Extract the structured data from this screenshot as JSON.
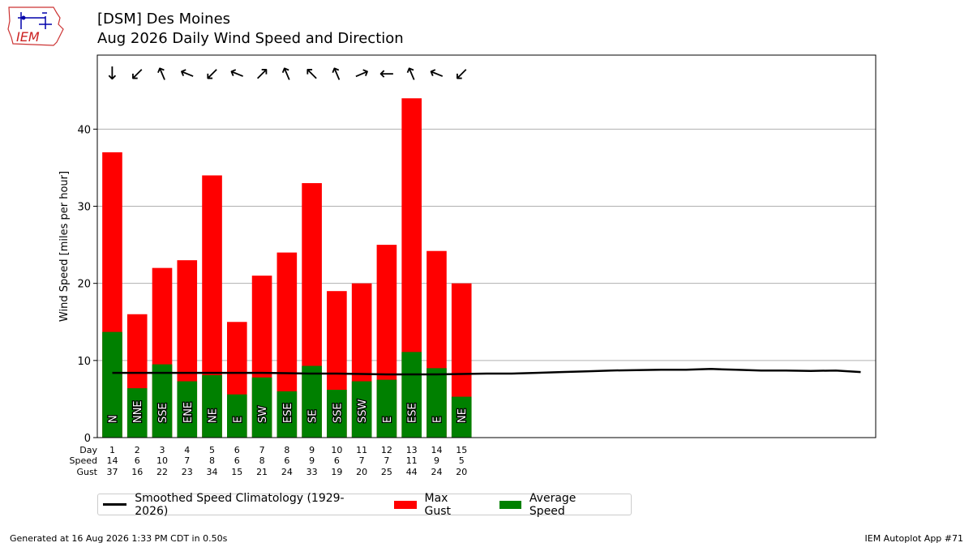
{
  "header": {
    "line1": "[DSM] Des Moines",
    "line2": "Aug 2026 Daily Wind Speed and Direction"
  },
  "logo": {
    "text": "IEM"
  },
  "footer": {
    "generated": "Generated at 16 Aug 2026 1:33 PM CDT in 0.50s",
    "app": "IEM Autoplot App #71"
  },
  "chart_data": {
    "type": "bar",
    "ylabel": "Wind Speed [miles per hour]",
    "ylim": [
      0,
      49.6
    ],
    "yticks": [
      0,
      10,
      20,
      30,
      40
    ],
    "x_days_total": 31,
    "grid": "horizontal",
    "row_labels": {
      "day": "Day",
      "speed": "Speed",
      "gust": "Gust"
    },
    "days": [
      1,
      2,
      3,
      4,
      5,
      6,
      7,
      8,
      9,
      10,
      11,
      12,
      13,
      14,
      15
    ],
    "directions": [
      "N",
      "NNE",
      "SSE",
      "ENE",
      "NE",
      "E",
      "SW",
      "ESE",
      "SE",
      "SSE",
      "SSW",
      "E",
      "ESE",
      "E",
      "NE"
    ],
    "arrow_glyphs": [
      "↓",
      "↙",
      "↖",
      "←",
      "↙",
      "←",
      "↗",
      "↖",
      "↖",
      "↖",
      "↗",
      "←",
      "↖",
      "←",
      "↙"
    ],
    "arrow_rotations": [
      0,
      0,
      22,
      22,
      0,
      22,
      0,
      22,
      0,
      22,
      22,
      0,
      22,
      22,
      0
    ],
    "series": [
      {
        "name": "Max Gust",
        "color": "#ff0000",
        "values": [
          37,
          16,
          22,
          23,
          34,
          15,
          21,
          24,
          33,
          19,
          20,
          25,
          44,
          24.2,
          20
        ]
      },
      {
        "name": "Average Speed",
        "color": "#008000",
        "values": [
          13.7,
          6.4,
          9.5,
          7.3,
          8.1,
          5.6,
          7.8,
          6.0,
          9.3,
          6.2,
          7.3,
          7.5,
          11.1,
          9.0,
          5.3
        ]
      },
      {
        "name": "Smoothed Speed Climatology (1929-2026)",
        "color": "#000000",
        "x": [
          1,
          2,
          3,
          4,
          5,
          6,
          7,
          8,
          9,
          10,
          11,
          12,
          13,
          14,
          15,
          16,
          17,
          18,
          19,
          20,
          21,
          22,
          23,
          24,
          25,
          26,
          27,
          28,
          29,
          30,
          31
        ],
        "values": [
          8.4,
          8.4,
          8.4,
          8.4,
          8.4,
          8.4,
          8.4,
          8.35,
          8.3,
          8.3,
          8.25,
          8.2,
          8.2,
          8.2,
          8.25,
          8.3,
          8.3,
          8.4,
          8.5,
          8.6,
          8.7,
          8.75,
          8.8,
          8.8,
          8.9,
          8.8,
          8.7,
          8.7,
          8.65,
          8.7,
          8.5
        ]
      }
    ],
    "speed_row": [
      14,
      6,
      10,
      7,
      8,
      6,
      8,
      6,
      9,
      6,
      7,
      7,
      11,
      9,
      5
    ],
    "gust_row": [
      37,
      16,
      22,
      23,
      34,
      15,
      21,
      24,
      33,
      19,
      20,
      25,
      44,
      24,
      20
    ]
  }
}
